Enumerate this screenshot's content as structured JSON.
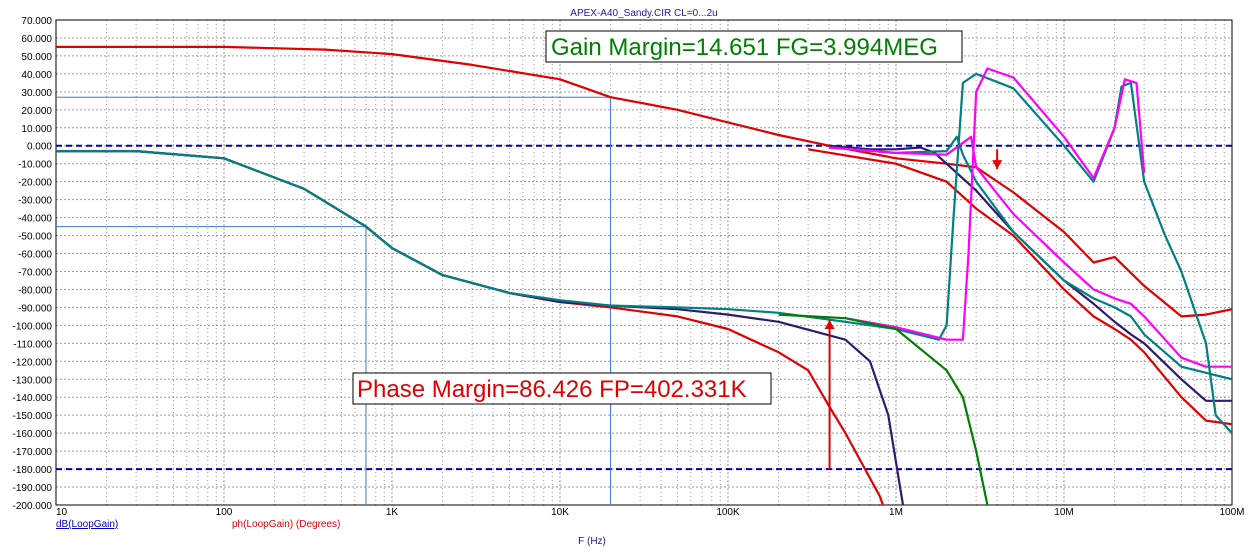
{
  "window": {
    "title": "APEX-A40_Sandy.CIR CL=0...2u"
  },
  "chart_data": {
    "type": "line",
    "title": "APEX-A40_Sandy.CIR CL=0...2u",
    "xlabel": "F (Hz)",
    "xscale": "log",
    "xlim": [
      10,
      100000000
    ],
    "ylim": [
      -200,
      70
    ],
    "grid": true,
    "x_ticks": [
      "10",
      "100",
      "1K",
      "10K",
      "100K",
      "1M",
      "10M",
      "100M"
    ],
    "y_ticks": [
      "70.000",
      "60.000",
      "50.000",
      "40.000",
      "30.000",
      "20.000",
      "10.000",
      "0.000",
      "-10.000",
      "-20.000",
      "-30.000",
      "-40.000",
      "-50.000",
      "-60.000",
      "-70.000",
      "-80.000",
      "-90.000",
      "-100.000",
      "-110.000",
      "-120.000",
      "-130.000",
      "-140.000",
      "-150.000",
      "-160.000",
      "-170.000",
      "-180.000",
      "-190.000",
      "-200.000"
    ],
    "legend": [
      {
        "text": "dB(LoopGain)",
        "color": "#0000c8"
      },
      {
        "text": "ph(LoopGain) (Degrees)",
        "color": "#e00000"
      }
    ],
    "reference_lines": [
      {
        "y": 0,
        "color": "#0000b0"
      },
      {
        "y": -180,
        "color": "#0000b0"
      }
    ],
    "cursors": [
      {
        "x": 20000,
        "y": 27,
        "color": "#3a78d8"
      },
      {
        "x": 700,
        "y": -45,
        "color": "#3a78d8"
      }
    ],
    "annotations": [
      {
        "text": "Gain Margin=14.651 FG=3.994MEG",
        "color": "#008000",
        "arrow_x": 4000000,
        "arrow_from": -2,
        "arrow_to": -13
      },
      {
        "text": "Phase Margin=86.426 FP=402.331K",
        "color": "#e00000",
        "arrow_x": 402331,
        "arrow_from": -180,
        "arrow_to": -97
      }
    ],
    "series": [
      {
        "color": "#e00000",
        "points": [
          [
            10,
            55
          ],
          [
            100,
            55
          ],
          [
            400,
            53.5
          ],
          [
            1000,
            51
          ],
          [
            3000,
            45
          ],
          [
            10000,
            37
          ],
          [
            20000,
            27
          ],
          [
            50000,
            20
          ],
          [
            100000,
            13
          ],
          [
            200000,
            6
          ],
          [
            400000,
            0
          ],
          [
            1000000,
            -7
          ],
          [
            2000000,
            -10
          ],
          [
            3000000,
            -12
          ],
          [
            5000000,
            -26
          ],
          [
            10000000,
            -48
          ],
          [
            15000000,
            -65
          ],
          [
            20000000,
            -62
          ],
          [
            30000000,
            -78
          ],
          [
            50000000,
            -95
          ],
          [
            70000000,
            -94
          ],
          [
            100000000,
            -91
          ]
        ]
      },
      {
        "color": "#2f1a6e",
        "points": [
          [
            400000,
            0
          ],
          [
            700000,
            -2
          ],
          [
            1000000,
            -2
          ],
          [
            1400000,
            -1
          ],
          [
            1700000,
            -4
          ],
          [
            2000000,
            -10
          ],
          [
            3000000,
            -25
          ],
          [
            5000000,
            -48
          ],
          [
            10000000,
            -75
          ],
          [
            15000000,
            -88
          ],
          [
            20000000,
            -98
          ],
          [
            25000000,
            -105
          ],
          [
            30000000,
            -110
          ],
          [
            50000000,
            -130
          ],
          [
            70000000,
            -142
          ],
          [
            100000000,
            -142
          ]
        ]
      },
      {
        "color": "#008080",
        "points": [
          [
            400000,
            -1
          ],
          [
            1000000,
            -4
          ],
          [
            2000000,
            -3
          ],
          [
            2300000,
            5
          ],
          [
            2500000,
            -5
          ],
          [
            3000000,
            -20
          ],
          [
            5000000,
            -48
          ],
          [
            10000000,
            -75
          ],
          [
            15000000,
            -85
          ],
          [
            20000000,
            -90
          ],
          [
            25000000,
            -95
          ],
          [
            30000000,
            -105
          ],
          [
            50000000,
            -123
          ],
          [
            100000000,
            -130
          ]
        ]
      },
      {
        "color": "#ff00ff",
        "points": [
          [
            400000,
            -1
          ],
          [
            1000000,
            -4
          ],
          [
            2000000,
            -5
          ],
          [
            2800000,
            5
          ],
          [
            3000000,
            -12
          ],
          [
            5000000,
            -38
          ],
          [
            10000000,
            -65
          ],
          [
            15000000,
            -80
          ],
          [
            20000000,
            -85
          ],
          [
            25000000,
            -88
          ],
          [
            30000000,
            -95
          ],
          [
            50000000,
            -118
          ],
          [
            70000000,
            -123
          ],
          [
            100000000,
            -123
          ]
        ]
      },
      {
        "color": "#e00000",
        "points": [
          [
            300000,
            -2
          ],
          [
            1000000,
            -10
          ],
          [
            2000000,
            -20
          ],
          [
            3000000,
            -35
          ],
          [
            5000000,
            -50
          ],
          [
            10000000,
            -80
          ],
          [
            15000000,
            -95
          ],
          [
            20000000,
            -102
          ],
          [
            25000000,
            -108
          ],
          [
            30000000,
            -115
          ],
          [
            50000000,
            -140
          ],
          [
            70000000,
            -153
          ],
          [
            100000000,
            -155
          ]
        ]
      },
      {
        "color": "#e00000",
        "points": [
          [
            10,
            -3
          ],
          [
            30,
            -3
          ],
          [
            100,
            -7
          ],
          [
            300,
            -24
          ],
          [
            700,
            -45
          ],
          [
            1000,
            -57
          ],
          [
            2000,
            -72
          ],
          [
            5000,
            -82
          ],
          [
            10000,
            -87
          ],
          [
            20000,
            -90
          ],
          [
            50000,
            -95
          ],
          [
            100000,
            -102
          ],
          [
            200000,
            -115
          ],
          [
            300000,
            -125
          ],
          [
            400000,
            -145
          ],
          [
            500000,
            -160
          ],
          [
            800000,
            -195
          ],
          [
            1000000,
            -220
          ]
        ]
      },
      {
        "color": "#2f1a6e",
        "points": [
          [
            10,
            -3
          ],
          [
            30,
            -3
          ],
          [
            100,
            -7
          ],
          [
            300,
            -24
          ],
          [
            700,
            -45
          ],
          [
            1000,
            -57
          ],
          [
            2000,
            -72
          ],
          [
            5000,
            -82
          ],
          [
            10000,
            -87
          ],
          [
            20000,
            -89
          ],
          [
            50000,
            -91
          ],
          [
            100000,
            -94
          ],
          [
            200000,
            -98
          ],
          [
            500000,
            -108
          ],
          [
            700000,
            -120
          ],
          [
            900000,
            -150
          ],
          [
            1100000,
            -200
          ],
          [
            1200000,
            -220
          ]
        ]
      },
      {
        "color": "#008080",
        "points": [
          [
            10,
            -3
          ],
          [
            30,
            -3
          ],
          [
            100,
            -7
          ],
          [
            300,
            -24
          ],
          [
            700,
            -45
          ],
          [
            1000,
            -57
          ],
          [
            2000,
            -72
          ],
          [
            5000,
            -82
          ],
          [
            10000,
            -86
          ],
          [
            20000,
            -89
          ],
          [
            50000,
            -90
          ],
          [
            100000,
            -91
          ],
          [
            200000,
            -93
          ],
          [
            500000,
            -98
          ],
          [
            1000000,
            -102
          ],
          [
            1800000,
            -108
          ],
          [
            2000000,
            -100
          ],
          [
            2200000,
            -40
          ],
          [
            2500000,
            35
          ],
          [
            3000000,
            40
          ],
          [
            5000000,
            32
          ],
          [
            10000000,
            0
          ],
          [
            15000000,
            -20
          ],
          [
            20000000,
            10
          ],
          [
            22000000,
            33
          ],
          [
            25000000,
            35
          ],
          [
            30000000,
            -20
          ],
          [
            40000000,
            -50
          ],
          [
            50000000,
            -70
          ],
          [
            70000000,
            -110
          ],
          [
            80000000,
            -150
          ],
          [
            100000000,
            -160
          ]
        ]
      },
      {
        "color": "#ff00ff",
        "points": [
          [
            500000,
            -96
          ],
          [
            1000000,
            -101
          ],
          [
            2000000,
            -108
          ],
          [
            2500000,
            -108
          ],
          [
            2700000,
            -60
          ],
          [
            3000000,
            30
          ],
          [
            3500000,
            43
          ],
          [
            5000000,
            38
          ],
          [
            10000000,
            5
          ],
          [
            15000000,
            -18
          ],
          [
            20000000,
            10
          ],
          [
            23000000,
            37
          ],
          [
            27000000,
            35
          ],
          [
            30000000,
            -15
          ]
        ]
      },
      {
        "color": "#008000",
        "points": [
          [
            200000,
            -94
          ],
          [
            500000,
            -96
          ],
          [
            1000000,
            -102
          ],
          [
            2000000,
            -125
          ],
          [
            2500000,
            -140
          ],
          [
            3000000,
            -170
          ],
          [
            3500000,
            -200
          ],
          [
            3800000,
            -220
          ]
        ]
      }
    ]
  }
}
